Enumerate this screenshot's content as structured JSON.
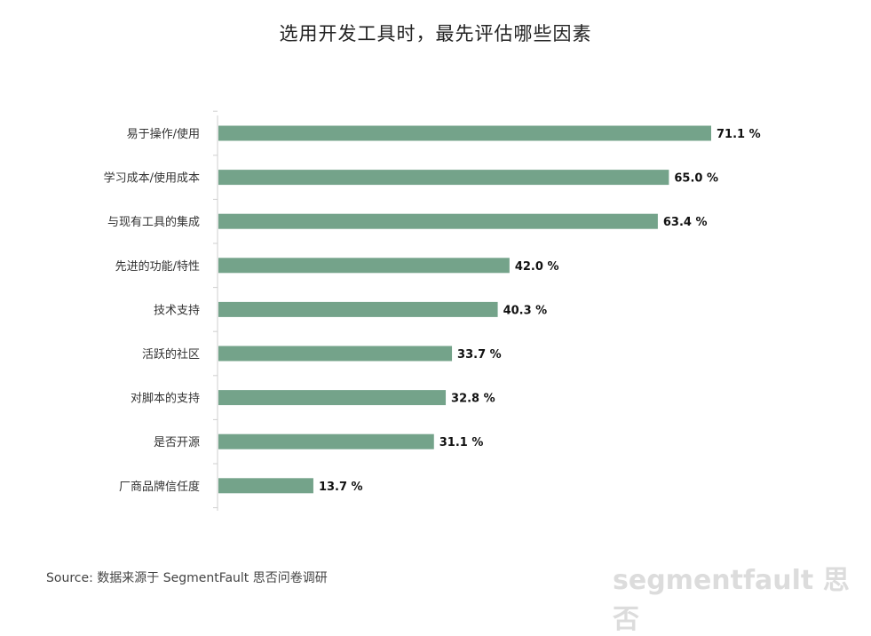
{
  "chart_data": {
    "type": "bar",
    "orientation": "horizontal",
    "title": "选用开发工具时，最先评估哪些因素",
    "categories": [
      "易于操作/使用",
      "学习成本/使用成本",
      "与现有工具的集成",
      "先进的功能/特性",
      "技术支持",
      "活跃的社区",
      "对脚本的支持",
      "是否开源",
      "厂商品牌信任度"
    ],
    "values": [
      71.1,
      65.0,
      63.4,
      42.0,
      40.3,
      33.7,
      32.8,
      31.1,
      13.7
    ],
    "value_labels": [
      "71.1 %",
      "65.0 %",
      "63.4 %",
      "42.0 %",
      "40.3 %",
      "33.7 %",
      "32.8 %",
      "31.1 %",
      "13.7 %"
    ],
    "xlim": [
      0,
      100
    ],
    "bar_color": "#74a38a",
    "grid": false,
    "legend": "none"
  },
  "footer": {
    "source": "Source: 数据来源于 SegmentFault 思否问卷调研",
    "brand": "segmentfault 思否"
  }
}
